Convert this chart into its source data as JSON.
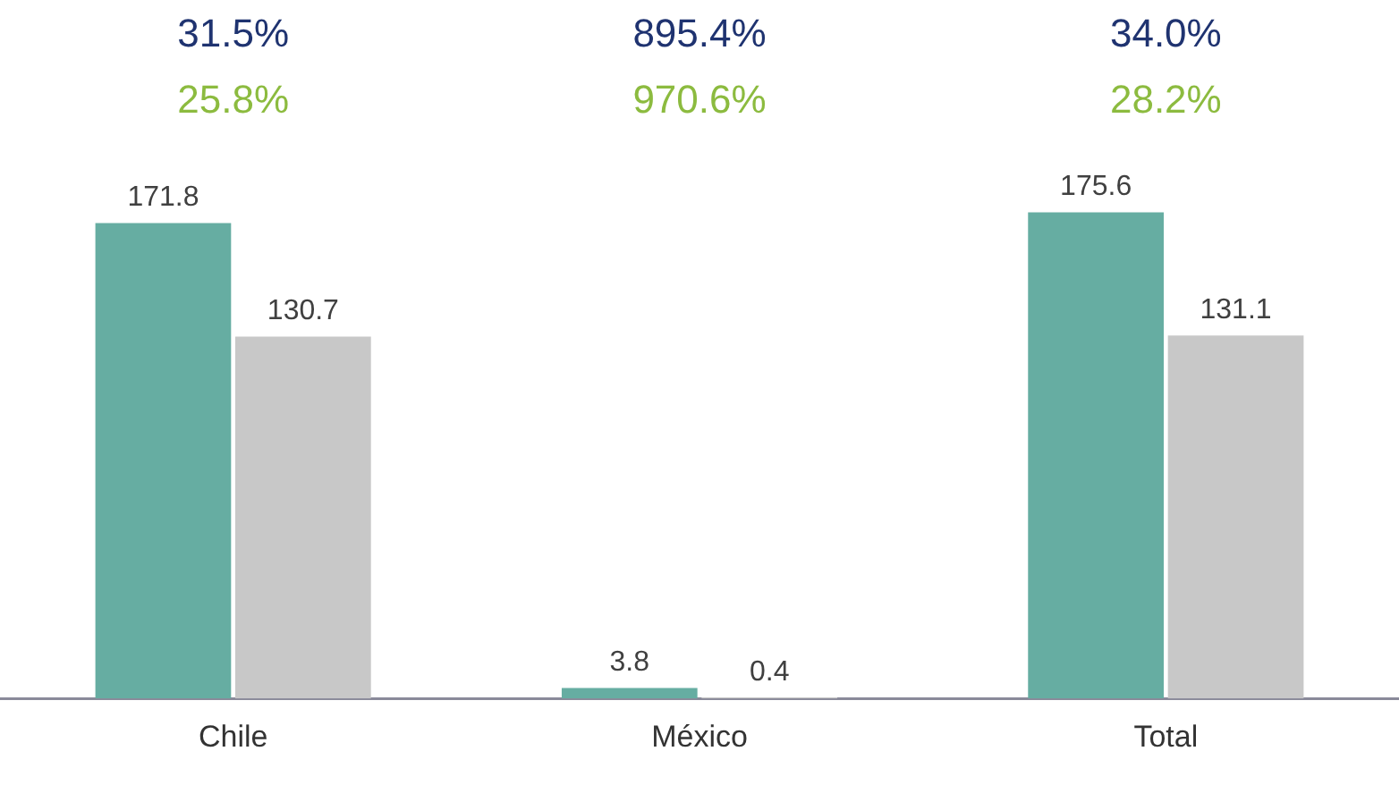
{
  "chart_data": {
    "type": "bar",
    "categories": [
      "Chile",
      "México",
      "Total"
    ],
    "series": [
      {
        "color": "#66ada2",
        "values": [
          171.8,
          3.8,
          175.6
        ]
      },
      {
        "color": "#c8c8c8",
        "values": [
          130.7,
          0.4,
          131.1
        ]
      }
    ],
    "data_labels": true,
    "grid": false,
    "legend": false,
    "annotations": [
      "31.5%",
      "895.4%",
      "34.0%",
      "25.8%",
      "970.6%",
      "28.2%"
    ]
  }
}
